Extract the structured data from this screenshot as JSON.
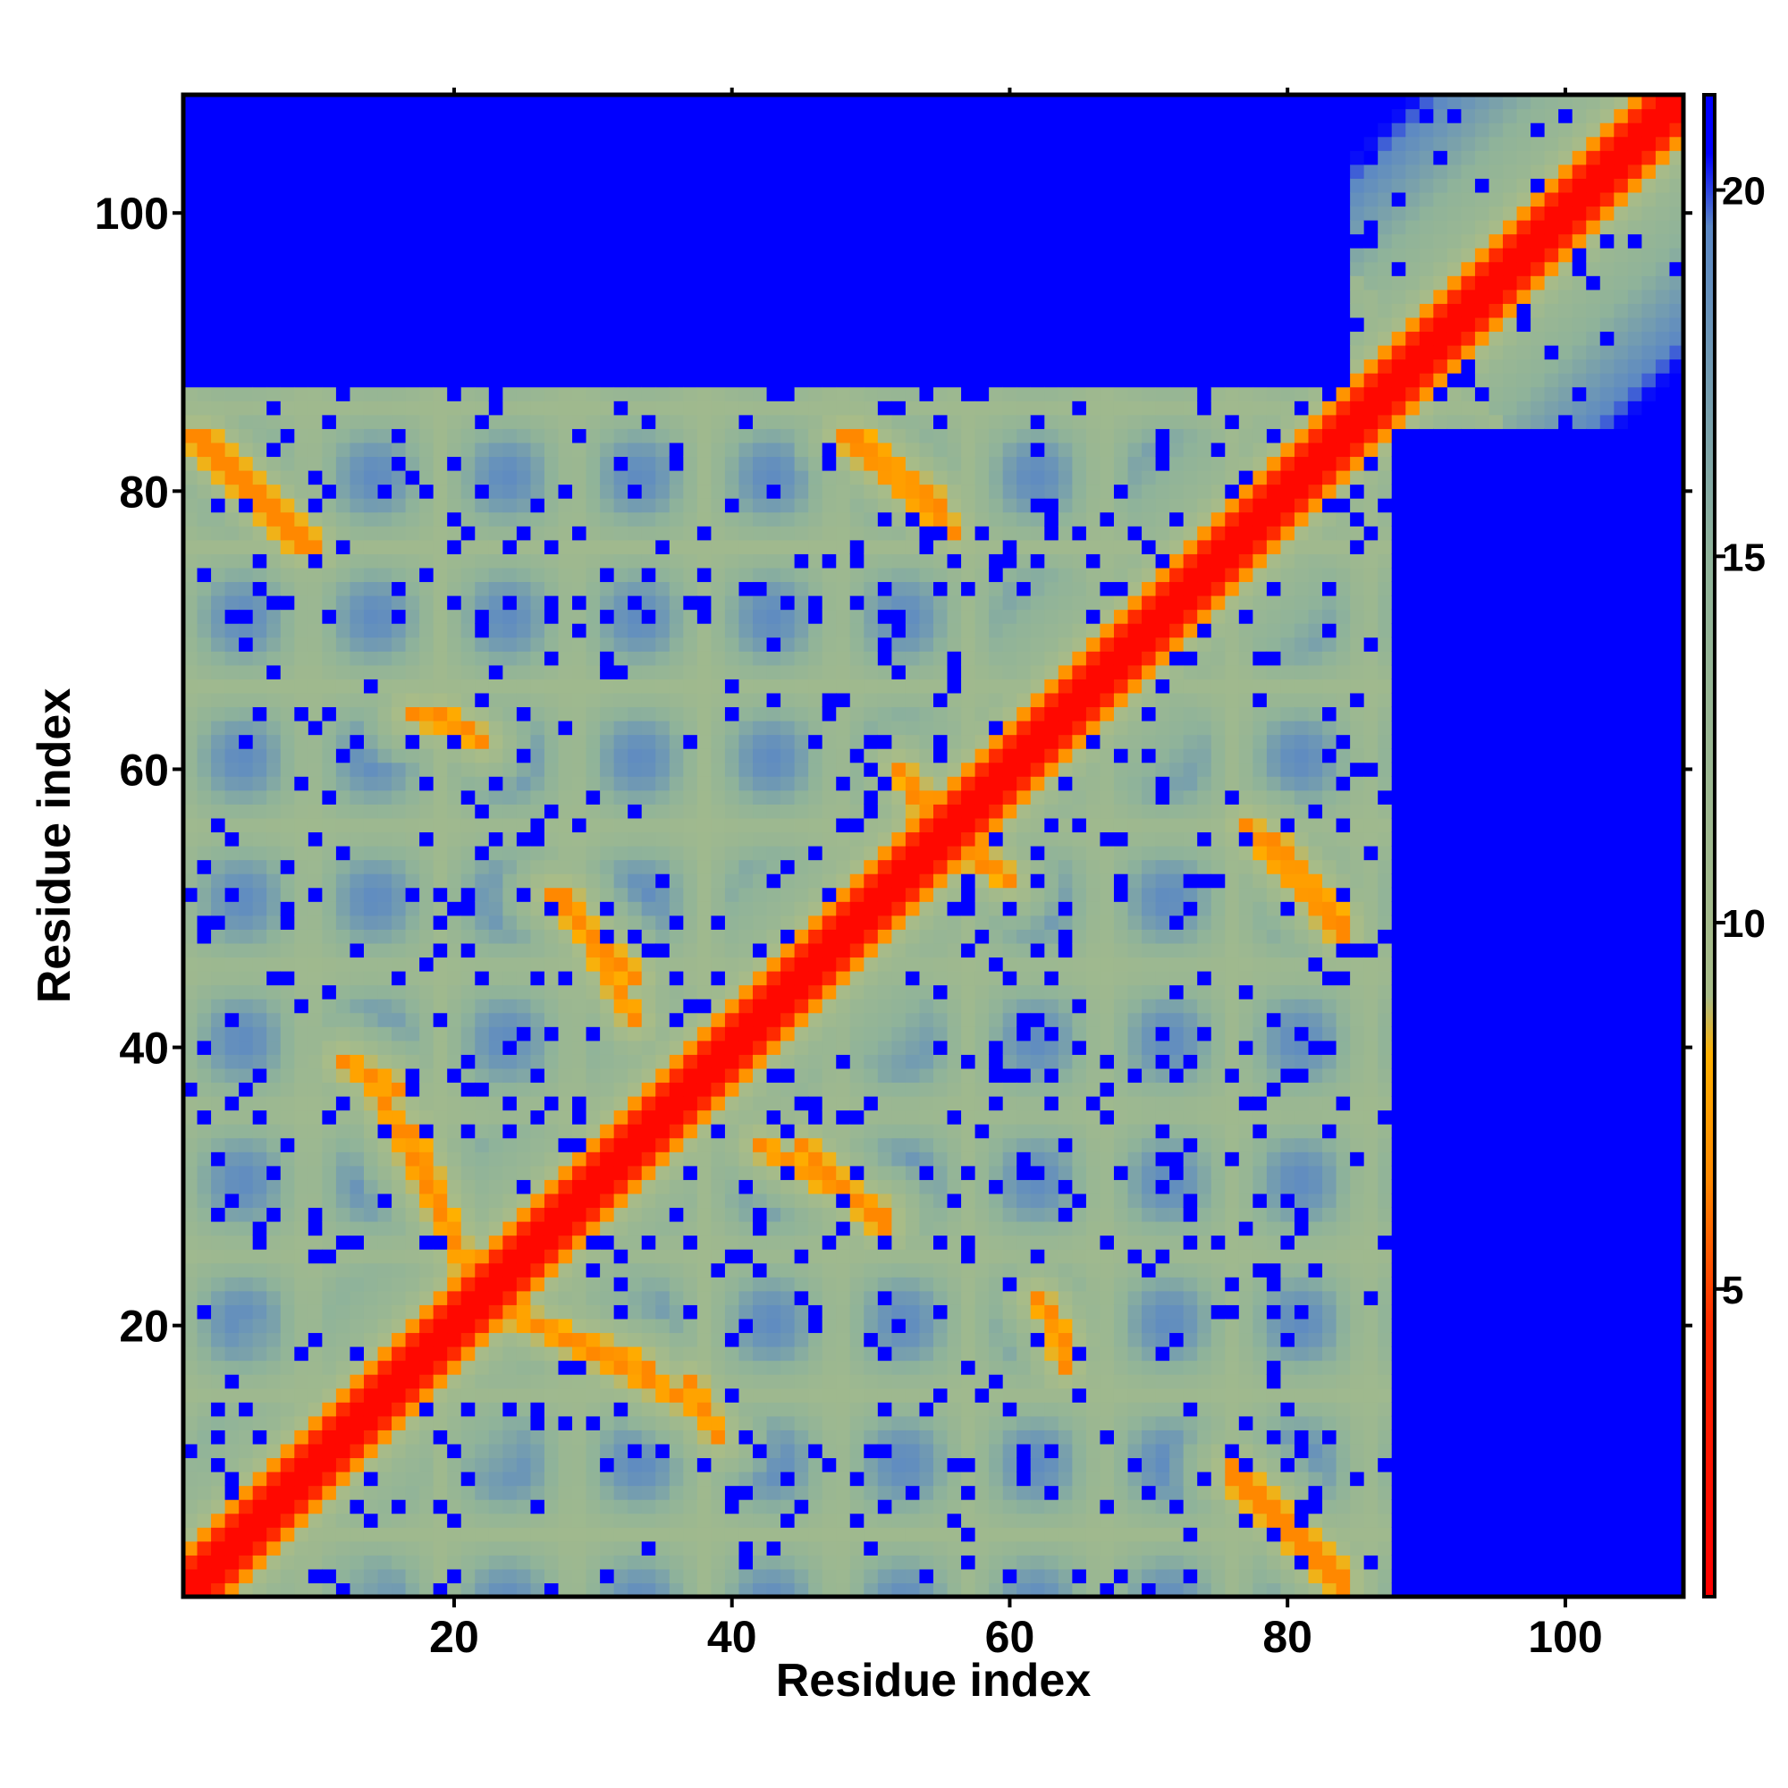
{
  "chart_data": {
    "type": "heatmap",
    "title": "",
    "xlabel": "Residue index",
    "ylabel": "Residue index",
    "xlim": [
      1,
      108
    ],
    "ylim": [
      1,
      108
    ],
    "x_ticks": [
      20,
      40,
      60,
      80,
      100
    ],
    "y_ticks": [
      20,
      40,
      60,
      80,
      100
    ],
    "n_residues": 108,
    "colorbar": {
      "ticks": [
        5,
        10,
        15,
        20
      ],
      "range": [
        0.8,
        21.3
      ],
      "colors": [
        {
          "value": 0.8,
          "color": "#ff0000"
        },
        {
          "value": 4.5,
          "color": "#ff2a00"
        },
        {
          "value": 6.5,
          "color": "#ff8800"
        },
        {
          "value": 8.2,
          "color": "#ffb000"
        },
        {
          "value": 9.0,
          "color": "#a8bc88"
        },
        {
          "value": 15.0,
          "color": "#8fb39a"
        },
        {
          "value": 19.5,
          "color": "#5a87c5"
        },
        {
          "value": 20.5,
          "color": "#0000ff"
        }
      ]
    },
    "contact_bands": [
      {
        "type": "diag",
        "a": [
          1,
          108
        ],
        "b": [
          1,
          108
        ],
        "value": 2
      },
      {
        "type": "anti",
        "a": [
          2,
          10
        ],
        "b": [
          84,
          76
        ],
        "value": 6.5
      },
      {
        "type": "anti",
        "a": [
          14,
          22
        ],
        "b": [
          38,
          22
        ],
        "value": 6.5
      },
      {
        "type": "anti",
        "a": [
          21,
          34
        ],
        "b": [
          22,
          17
        ],
        "value": 6.5
      },
      {
        "type": "anti",
        "a": [
          28,
          33
        ],
        "b": [
          51,
          42
        ],
        "value": 6.5
      },
      {
        "type": "anti",
        "a": [
          37,
          39
        ],
        "b": [
          16,
          12
        ],
        "value": 6.5
      },
      {
        "type": "anti",
        "a": [
          45,
          51
        ],
        "b": [
          33,
          27
        ],
        "value": 6.5
      },
      {
        "type": "anti",
        "a": [
          48,
          56
        ],
        "b": [
          84,
          77
        ],
        "value": 6.5
      },
      {
        "type": "anti",
        "a": [
          52,
          58
        ],
        "b": [
          60,
          53
        ],
        "value": 6.5
      },
      {
        "type": "anti",
        "a": [
          62,
          64
        ],
        "b": [
          22,
          19
        ],
        "value": 6.5
      },
      {
        "type": "anti",
        "a": [
          76,
          84
        ],
        "b": [
          9,
          1
        ],
        "value": 6.5
      },
      {
        "type": "anti",
        "a": [
          79,
          84
        ],
        "b": [
          55,
          49
        ],
        "value": 6.5
      },
      {
        "type": "anti",
        "a": [
          17,
          21
        ],
        "b": [
          64,
          63
        ],
        "value": 6.5
      }
    ],
    "far_region": {
      "x_min": 88,
      "y_max": 84,
      "value": 21
    }
  }
}
